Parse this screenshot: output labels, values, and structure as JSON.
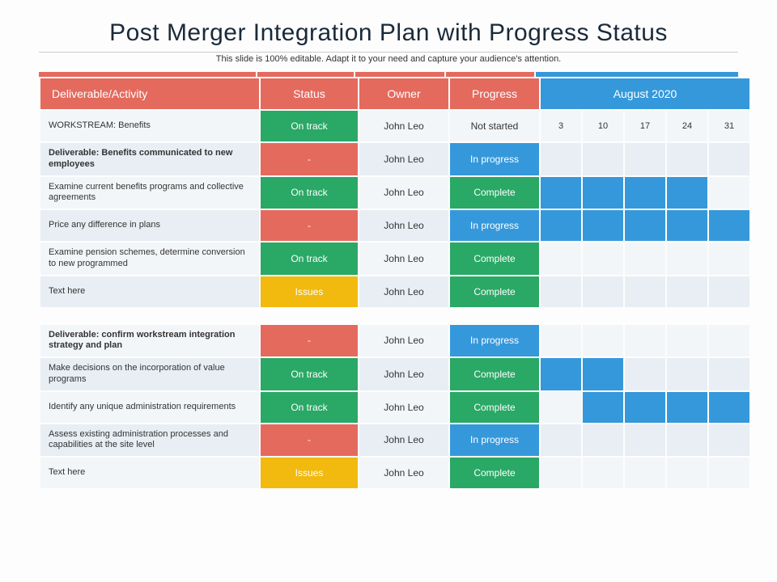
{
  "title": "Post Merger Integration Plan with Progress Status",
  "subtitle": "This slide is 100% editable. Adapt it to your need and capture your audience's attention.",
  "colors": {
    "header_red": "#e46a5e",
    "header_blue": "#3598db",
    "green": "#2aa866",
    "orange": "#f2b90f",
    "blue": "#3598db",
    "row_light": "#f3f6f9",
    "row_alt": "#e8eef4",
    "white": "#ffffff"
  },
  "accent_widths": [
    "270px",
    "120px",
    "110px",
    "110px",
    "252px"
  ],
  "columns": {
    "activity": "Deliverable/Activity",
    "status": "Status",
    "owner": "Owner",
    "progress": "Progress",
    "month": "August 2020"
  },
  "dates": [
    "3",
    "10",
    "17",
    "24",
    "31"
  ],
  "groups": [
    {
      "rows": [
        {
          "activity": "WORKSTREAM: Benefits",
          "bold": false,
          "status": "On track",
          "status_color": "green",
          "owner": "John Leo",
          "progress": "Not started",
          "progress_color": "none",
          "gantt": [
            0,
            0,
            0,
            0,
            0
          ],
          "show_dates": true,
          "row_bg": "row_light"
        },
        {
          "activity": "Deliverable: Benefits communicated to new employees",
          "bold": true,
          "status": "-",
          "status_color": "header_red",
          "owner": "John Leo",
          "progress": "In progress",
          "progress_color": "blue",
          "gantt": [
            0,
            0,
            0,
            0,
            0
          ],
          "row_bg": "row_alt"
        },
        {
          "activity": "Examine current benefits programs and collective agreements",
          "bold": false,
          "status": "On track",
          "status_color": "green",
          "owner": "John Leo",
          "progress": "Complete",
          "progress_color": "green",
          "gantt": [
            1,
            1,
            1,
            1,
            0
          ],
          "row_bg": "row_light"
        },
        {
          "activity": "Price any difference in plans",
          "bold": false,
          "status": "-",
          "status_color": "header_red",
          "owner": "John Leo",
          "progress": "In progress",
          "progress_color": "blue",
          "gantt": [
            1,
            1,
            1,
            1,
            1
          ],
          "row_bg": "row_alt"
        },
        {
          "activity": "Examine pension schemes, determine conversion to new programmed",
          "bold": false,
          "status": "On track",
          "status_color": "green",
          "owner": "John Leo",
          "progress": "Complete",
          "progress_color": "green",
          "gantt": [
            0,
            0,
            0,
            0,
            0
          ],
          "row_bg": "row_light"
        },
        {
          "activity": "Text here",
          "bold": false,
          "status": "Issues",
          "status_color": "orange",
          "owner": "John Leo",
          "progress": "Complete",
          "progress_color": "green",
          "gantt": [
            0,
            0,
            0,
            0,
            0
          ],
          "row_bg": "row_alt"
        }
      ]
    },
    {
      "rows": [
        {
          "activity": "Deliverable: confirm workstream integration strategy and plan",
          "bold": true,
          "status": "-",
          "status_color": "header_red",
          "owner": "John Leo",
          "progress": "In progress",
          "progress_color": "blue",
          "gantt": [
            0,
            0,
            0,
            0,
            0
          ],
          "row_bg": "row_light"
        },
        {
          "activity": "Make decisions on the incorporation of value programs",
          "bold": false,
          "status": "On track",
          "status_color": "green",
          "owner": "John Leo",
          "progress": "Complete",
          "progress_color": "green",
          "gantt": [
            1,
            1,
            0,
            0,
            0
          ],
          "row_bg": "row_alt"
        },
        {
          "activity": "Identify any unique administration requirements",
          "bold": false,
          "status": "On track",
          "status_color": "green",
          "owner": "John Leo",
          "progress": "Complete",
          "progress_color": "green",
          "gantt": [
            0,
            1,
            1,
            1,
            1
          ],
          "row_bg": "row_light"
        },
        {
          "activity": "Assess existing administration processes and capabilities at the site level",
          "bold": false,
          "status": "-",
          "status_color": "header_red",
          "owner": "John Leo",
          "progress": "In progress",
          "progress_color": "blue",
          "gantt": [
            0,
            0,
            0,
            0,
            0
          ],
          "row_bg": "row_alt"
        },
        {
          "activity": "Text here",
          "bold": false,
          "status": "Issues",
          "status_color": "orange",
          "owner": "John Leo",
          "progress": "Complete",
          "progress_color": "green",
          "gantt": [
            0,
            0,
            0,
            0,
            0
          ],
          "row_bg": "row_light"
        }
      ]
    }
  ]
}
